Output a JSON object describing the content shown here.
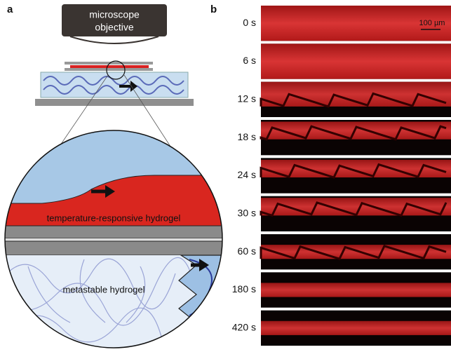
{
  "panel_a": {
    "label": "a",
    "objective": [
      "microscope",
      "objective"
    ],
    "top_layer": "temperature-responsive hydrogel",
    "bottom_layer": "metastable hydrogel"
  },
  "panel_b": {
    "label": "b",
    "scale_bar": "100 µm",
    "times": [
      "0 s",
      "6 s",
      "12 s",
      "18 s",
      "24 s",
      "30 s",
      "60 s",
      "180 s",
      "420 s"
    ]
  }
}
